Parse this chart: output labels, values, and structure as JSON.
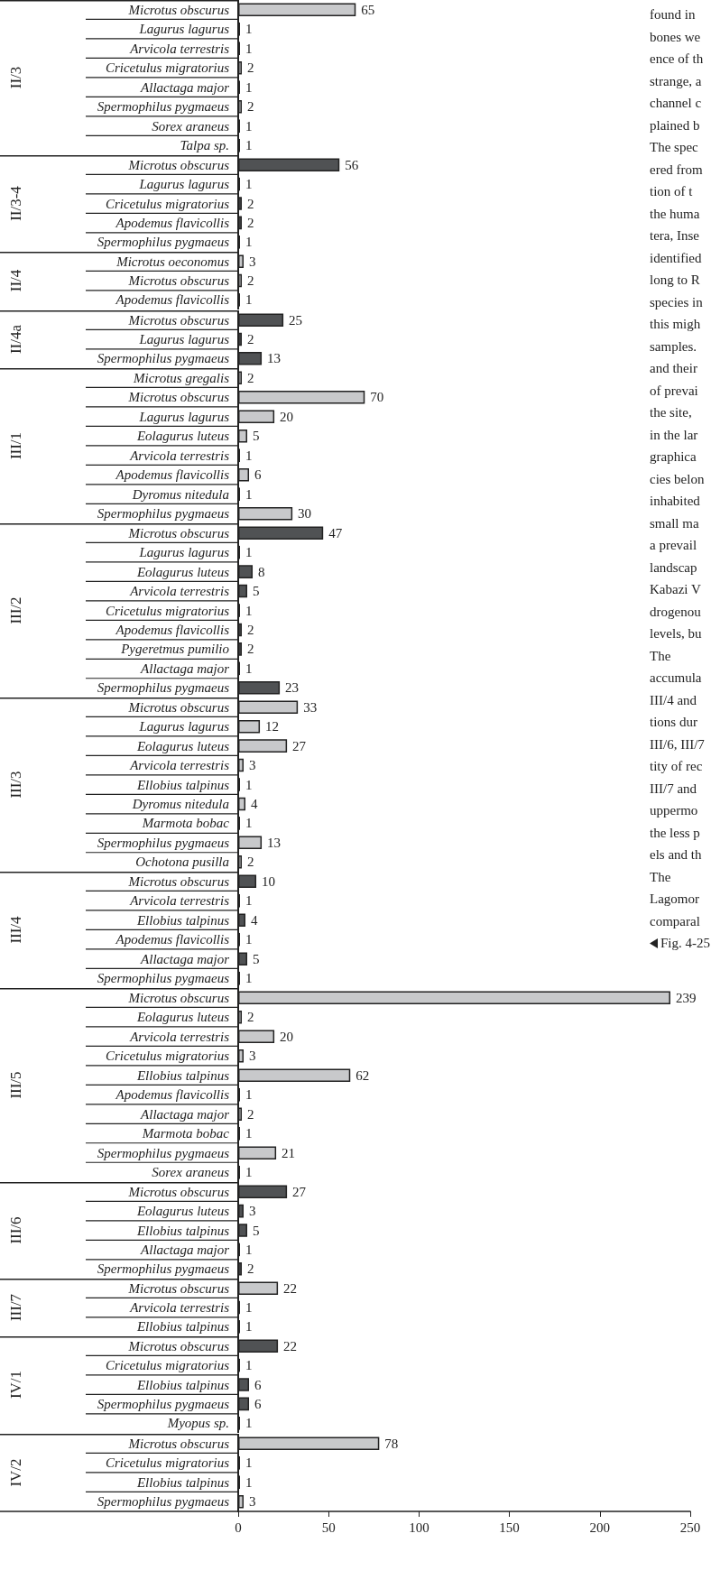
{
  "chart_data": [
    {
      "type": "bar",
      "orientation": "horizontal",
      "ylabel": "II/3",
      "categories": [
        "Microtus obscurus",
        "Lagurus lagurus",
        "Arvicola terrestris",
        "Cricetulus migratorius",
        "Allactaga major",
        "Spermophilus pygmaeus",
        "Sorex araneus",
        "Talpa sp."
      ],
      "values": [
        65,
        1,
        1,
        2,
        1,
        2,
        1,
        1
      ],
      "color": "#c8c9cb",
      "xlim": [
        0,
        250
      ],
      "xticks": [
        0,
        50,
        100,
        150,
        200,
        250
      ],
      "data_labels": true,
      "tick_labels": "y",
      "annotations": [
        "found in",
        "bones we",
        "ence of th",
        "strange, a",
        "channel c",
        "plained b",
        "The spec",
        "ered from",
        "tion of t",
        "the huma",
        "tera, Inse",
        "identified",
        "long to R",
        "species in",
        "this migh",
        "samples.",
        "and their",
        "of prevai",
        "the site,",
        "in the lar",
        "graphica",
        "cies belon",
        "inhabited",
        "small ma",
        "a prevail",
        "landscap",
        "Kabazi V",
        "drogenou",
        "levels, bu",
        "The",
        "accumula",
        "III/4 and",
        "tions dur",
        "III/6, III/7",
        "tity of rec",
        "III/7 and",
        "uppermo",
        "the less p",
        "els and th",
        "The",
        "Lagomor",
        "comparal",
        "Fig. 4-25"
      ]
    },
    {
      "type": "bar",
      "orientation": "horizontal",
      "ylabel": "II/3-4",
      "categories": [
        "Microtus obscurus",
        "Lagurus lagurus",
        "Cricetulus migratorius",
        "Apodemus flavicollis",
        "Spermophilus pygmaeus"
      ],
      "values": [
        56,
        1,
        2,
        2,
        1
      ],
      "color": "#505254",
      "xlim": [
        0,
        250
      ],
      "xticks": [
        0,
        50,
        100,
        150,
        200,
        250
      ],
      "data_labels": true,
      "tick_labels": "y"
    },
    {
      "type": "bar",
      "orientation": "horizontal",
      "ylabel": "II/4",
      "categories": [
        "Microtus oeconomus",
        "Microtus obscurus",
        "Apodemus flavicollis"
      ],
      "values": [
        3,
        2,
        1
      ],
      "color": "#c8c9cb",
      "xlim": [
        0,
        250
      ],
      "xticks": [
        0,
        50,
        100,
        150,
        200,
        250
      ],
      "data_labels": true,
      "tick_labels": "y"
    },
    {
      "type": "bar",
      "orientation": "horizontal",
      "ylabel": "II/4a",
      "categories": [
        "Microtus obscurus",
        "Lagurus lagurus",
        "Spermophilus pygmaeus"
      ],
      "values": [
        25,
        2,
        13
      ],
      "color": "#505254",
      "xlim": [
        0,
        250
      ],
      "xticks": [
        0,
        50,
        100,
        150,
        200,
        250
      ],
      "data_labels": true,
      "tick_labels": "y"
    },
    {
      "type": "bar",
      "orientation": "horizontal",
      "ylabel": "III/1",
      "categories": [
        "Microtus gregalis",
        "Microtus obscurus",
        "Lagurus lagurus",
        "Eolagurus luteus",
        "Arvicola terrestris",
        "Apodemus flavicollis",
        "Dyromus nitedula",
        "Spermophilus pygmaeus"
      ],
      "values": [
        2,
        70,
        20,
        5,
        1,
        6,
        1,
        30
      ],
      "color": "#c8c9cb",
      "xlim": [
        0,
        250
      ],
      "xticks": [
        0,
        50,
        100,
        150,
        200,
        250
      ],
      "data_labels": true,
      "tick_labels": "y"
    },
    {
      "type": "bar",
      "orientation": "horizontal",
      "ylabel": "III/2",
      "categories": [
        "Microtus obscurus",
        "Lagurus lagurus",
        "Eolagurus luteus",
        "Arvicola terrestris",
        "Cricetulus migratorius",
        "Apodemus flavicollis",
        "Pygeretmus pumilio",
        "Allactaga major",
        "Spermophilus pygmaeus"
      ],
      "values": [
        47,
        1,
        8,
        5,
        1,
        2,
        2,
        1,
        23
      ],
      "color": "#505254",
      "xlim": [
        0,
        250
      ],
      "xticks": [
        0,
        50,
        100,
        150,
        200,
        250
      ],
      "data_labels": true,
      "tick_labels": "y"
    },
    {
      "type": "bar",
      "orientation": "horizontal",
      "ylabel": "III/3",
      "categories": [
        "Microtus obscurus",
        "Lagurus lagurus",
        "Eolagurus luteus",
        "Arvicola terrestris",
        "Ellobius talpinus",
        "Dyromus nitedula",
        "Marmota bobac",
        "Spermophilus pygmaeus",
        "Ochotona pusilla"
      ],
      "values": [
        33,
        12,
        27,
        3,
        1,
        4,
        1,
        13,
        2
      ],
      "color": "#c8c9cb",
      "xlim": [
        0,
        250
      ],
      "xticks": [
        0,
        50,
        100,
        150,
        200,
        250
      ],
      "data_labels": true,
      "tick_labels": "y"
    },
    {
      "type": "bar",
      "orientation": "horizontal",
      "ylabel": "III/4",
      "categories": [
        "Microtus obscurus",
        "Arvicola terrestris",
        "Ellobius talpinus",
        "Apodemus flavicollis",
        "Allactaga major",
        "Spermophilus pygmaeus"
      ],
      "values": [
        10,
        1,
        4,
        1,
        5,
        1
      ],
      "color": "#505254",
      "xlim": [
        0,
        250
      ],
      "xticks": [
        0,
        50,
        100,
        150,
        200,
        250
      ],
      "data_labels": true,
      "tick_labels": "y"
    },
    {
      "type": "bar",
      "orientation": "horizontal",
      "ylabel": "III/5",
      "categories": [
        "Microtus obscurus",
        "Eolagurus luteus",
        "Arvicola terrestris",
        "Cricetulus migratorius",
        "Ellobius talpinus",
        "Apodemus flavicollis",
        "Allactaga major",
        "Marmota bobac",
        "Spermophilus pygmaeus",
        "Sorex araneus"
      ],
      "values": [
        239,
        2,
        20,
        3,
        62,
        1,
        2,
        1,
        21,
        1
      ],
      "color": "#c8c9cb",
      "xlim": [
        0,
        250
      ],
      "xticks": [
        0,
        50,
        100,
        150,
        200,
        250
      ],
      "data_labels": true,
      "tick_labels": "y"
    },
    {
      "type": "bar",
      "orientation": "horizontal",
      "ylabel": "III/6",
      "categories": [
        "Microtus obscurus",
        "Eolagurus luteus",
        "Ellobius talpinus",
        "Allactaga major",
        "Spermophilus pygmaeus"
      ],
      "values": [
        27,
        3,
        5,
        1,
        2
      ],
      "color": "#505254",
      "xlim": [
        0,
        250
      ],
      "xticks": [
        0,
        50,
        100,
        150,
        200,
        250
      ],
      "data_labels": true,
      "tick_labels": "y"
    },
    {
      "type": "bar",
      "orientation": "horizontal",
      "ylabel": "III/7",
      "categories": [
        "Microtus obscurus",
        "Arvicola terrestris",
        "Ellobius talpinus"
      ],
      "values": [
        22,
        1,
        1
      ],
      "color": "#c8c9cb",
      "xlim": [
        0,
        250
      ],
      "xticks": [
        0,
        50,
        100,
        150,
        200,
        250
      ],
      "data_labels": true,
      "tick_labels": "y"
    },
    {
      "type": "bar",
      "orientation": "horizontal",
      "ylabel": "IV/1",
      "categories": [
        "Microtus obscurus",
        "Cricetulus migratorius",
        "Ellobius talpinus",
        "Spermophilus pygmaeus",
        "Myopus sp."
      ],
      "values": [
        22,
        1,
        6,
        6,
        1
      ],
      "color": "#505254",
      "xlim": [
        0,
        250
      ],
      "xticks": [
        0,
        50,
        100,
        150,
        200,
        250
      ],
      "data_labels": true,
      "tick_labels": "y"
    },
    {
      "type": "bar",
      "orientation": "horizontal",
      "ylabel": "IV/2",
      "categories": [
        "Microtus obscurus",
        "Cricetulus migratorius",
        "Ellobius talpinus",
        "Spermophilus pygmaeus"
      ],
      "values": [
        78,
        1,
        1,
        3
      ],
      "color": "#c8c9cb",
      "xlim": [
        0,
        250
      ],
      "xticks": [
        0,
        50,
        100,
        150,
        200,
        250
      ],
      "data_labels": true
    }
  ]
}
